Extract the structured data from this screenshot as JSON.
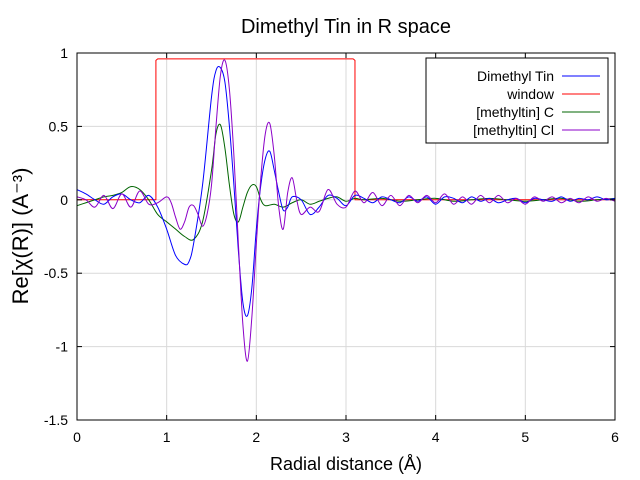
{
  "chart_data": {
    "type": "line",
    "title": "Dimethyl Tin in R space",
    "xlabel": "Radial distance    (Å)",
    "ylabel": "Re[χ(R)]    (A⁻³)",
    "xlim": [
      0,
      6
    ],
    "ylim": [
      -1.5,
      1
    ],
    "x_ticks": [
      "0",
      "1",
      "2",
      "3",
      "4",
      "5",
      "6"
    ],
    "y_ticks": [
      "1",
      "0.5",
      "0",
      "-0.5",
      "-1",
      "-1.5"
    ],
    "grid": true,
    "legend_position": "top-right",
    "series": [
      {
        "name": "Dimethyl Tin",
        "color": "#0000ff",
        "x": [
          0,
          0.1,
          0.2,
          0.3,
          0.4,
          0.5,
          0.6,
          0.7,
          0.8,
          0.9,
          1.0,
          1.1,
          1.2,
          1.25,
          1.3,
          1.4,
          1.5,
          1.55,
          1.6,
          1.65,
          1.7,
          1.75,
          1.8,
          1.85,
          1.9,
          1.95,
          2.0,
          2.05,
          2.1,
          2.15,
          2.2,
          2.25,
          2.3,
          2.35,
          2.4,
          2.5,
          2.6,
          2.7,
          2.8,
          2.9,
          3.0,
          3.1,
          3.2,
          3.3,
          3.4,
          3.5,
          3.6,
          3.7,
          3.8,
          3.9,
          4.0,
          4.1,
          4.2,
          4.3,
          4.4,
          4.5,
          4.6,
          4.7,
          4.8,
          4.9,
          5.0,
          5.1,
          5.2,
          5.3,
          5.4,
          5.5,
          5.6,
          5.7,
          5.8,
          5.9,
          6.0
        ],
        "y": [
          0.07,
          0.04,
          0.0,
          -0.03,
          0.02,
          0.04,
          0.0,
          -0.02,
          0.03,
          -0.05,
          -0.2,
          -0.38,
          -0.44,
          -0.42,
          -0.3,
          0.1,
          0.7,
          0.88,
          0.9,
          0.8,
          0.5,
          0.1,
          -0.35,
          -0.7,
          -0.79,
          -0.6,
          -0.2,
          0.1,
          0.28,
          0.33,
          0.2,
          0.05,
          -0.07,
          -0.05,
          0.02,
          0.0,
          -0.1,
          -0.05,
          0.03,
          0.01,
          -0.04,
          0.03,
          0.01,
          -0.02,
          0.02,
          0.0,
          -0.02,
          0.02,
          -0.01,
          0.02,
          -0.03,
          0.02,
          0.01,
          -0.02,
          0.02,
          -0.01,
          0.01,
          -0.02,
          0.0,
          0.01,
          -0.02,
          0.01,
          0.0,
          -0.01,
          0.02,
          -0.01,
          0.01,
          0.0,
          0.02,
          0.0,
          0.01
        ]
      },
      {
        "name": "window",
        "color": "#ff0000",
        "x": [
          0,
          0.88,
          0.88,
          0.9,
          3.08,
          3.1,
          3.1,
          6.0
        ],
        "y": [
          0,
          0,
          0.95,
          0.96,
          0.96,
          0.95,
          0,
          0
        ]
      },
      {
        "name": "[methyltin] C",
        "color": "#006400",
        "x": [
          0,
          0.1,
          0.2,
          0.3,
          0.4,
          0.5,
          0.6,
          0.7,
          0.8,
          0.9,
          1.0,
          1.1,
          1.2,
          1.3,
          1.4,
          1.5,
          1.55,
          1.6,
          1.65,
          1.7,
          1.75,
          1.8,
          1.85,
          1.9,
          1.95,
          2.0,
          2.05,
          2.1,
          2.2,
          2.3,
          2.4,
          2.5,
          2.6,
          2.7,
          2.8,
          2.9,
          3.0,
          3.1,
          3.2,
          3.4,
          3.6,
          3.8,
          4.0,
          4.2,
          4.4,
          4.6,
          4.8,
          5.0,
          5.2,
          5.4,
          5.6,
          5.8,
          6.0
        ],
        "y": [
          -0.04,
          -0.02,
          0.0,
          0.02,
          0.03,
          0.05,
          0.09,
          0.07,
          0.0,
          -0.1,
          -0.15,
          -0.2,
          -0.25,
          -0.27,
          -0.15,
          0.2,
          0.45,
          0.51,
          0.35,
          0.1,
          -0.1,
          -0.15,
          -0.05,
          0.05,
          0.1,
          0.09,
          0.0,
          -0.04,
          -0.03,
          -0.05,
          -0.02,
          0.0,
          -0.03,
          -0.01,
          0.01,
          0.02,
          -0.01,
          0.01,
          0.0,
          0.01,
          -0.01,
          0.0,
          0.01,
          -0.01,
          0.0,
          0.01,
          0.0,
          -0.01,
          0.0,
          0.01,
          -0.01,
          0.0,
          0.01
        ]
      },
      {
        "name": "[methyltin] Cl",
        "color": "#8b00c8",
        "x": [
          0,
          0.1,
          0.2,
          0.3,
          0.4,
          0.5,
          0.6,
          0.7,
          0.8,
          0.9,
          1.0,
          1.05,
          1.1,
          1.15,
          1.2,
          1.25,
          1.3,
          1.35,
          1.4,
          1.45,
          1.5,
          1.55,
          1.6,
          1.65,
          1.7,
          1.75,
          1.8,
          1.85,
          1.9,
          1.95,
          2.0,
          2.05,
          2.1,
          2.15,
          2.2,
          2.25,
          2.3,
          2.35,
          2.4,
          2.45,
          2.5,
          2.6,
          2.7,
          2.8,
          2.9,
          3.0,
          3.1,
          3.2,
          3.3,
          3.4,
          3.5,
          3.6,
          3.7,
          3.8,
          3.9,
          4.0,
          4.1,
          4.2,
          4.3,
          4.4,
          4.5,
          4.6,
          4.7,
          4.8,
          4.9,
          5.0,
          5.1,
          5.2,
          5.3,
          5.4,
          5.5,
          5.6,
          5.7,
          5.8,
          5.9,
          6.0
        ],
        "y": [
          0.02,
          0.0,
          -0.05,
          0.03,
          -0.06,
          0.04,
          -0.05,
          0.06,
          -0.03,
          -0.02,
          0.02,
          -0.02,
          -0.12,
          -0.2,
          -0.15,
          -0.05,
          -0.04,
          -0.1,
          -0.18,
          -0.1,
          0.1,
          0.5,
          0.85,
          0.95,
          0.75,
          0.3,
          -0.3,
          -0.85,
          -1.1,
          -0.8,
          -0.3,
          0.15,
          0.45,
          0.52,
          0.3,
          -0.05,
          -0.2,
          0.05,
          0.15,
          0.0,
          -0.1,
          -0.05,
          -0.08,
          0.07,
          -0.03,
          -0.05,
          0.06,
          -0.02,
          0.05,
          -0.04,
          0.03,
          -0.04,
          0.03,
          -0.02,
          0.03,
          -0.02,
          0.04,
          -0.03,
          0.02,
          -0.03,
          0.03,
          -0.02,
          0.03,
          -0.02,
          0.01,
          -0.03,
          0.02,
          -0.01,
          0.02,
          -0.02,
          0.01,
          -0.02,
          0.02,
          -0.01,
          0.01,
          -0.01
        ]
      }
    ]
  }
}
